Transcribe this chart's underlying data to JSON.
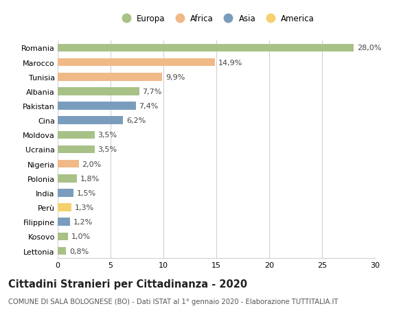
{
  "countries": [
    "Romania",
    "Marocco",
    "Tunisia",
    "Albania",
    "Pakistan",
    "Cina",
    "Moldova",
    "Ucraina",
    "Nigeria",
    "Polonia",
    "India",
    "Perù",
    "Filippine",
    "Kosovo",
    "Lettonia"
  ],
  "values": [
    28.0,
    14.9,
    9.9,
    7.7,
    7.4,
    6.2,
    3.5,
    3.5,
    2.0,
    1.8,
    1.5,
    1.3,
    1.2,
    1.0,
    0.8
  ],
  "labels": [
    "28,0%",
    "14,9%",
    "9,9%",
    "7,7%",
    "7,4%",
    "6,2%",
    "3,5%",
    "3,5%",
    "2,0%",
    "1,8%",
    "1,5%",
    "1,3%",
    "1,2%",
    "1,0%",
    "0,8%"
  ],
  "continents": [
    "Europa",
    "Africa",
    "Africa",
    "Europa",
    "Asia",
    "Asia",
    "Europa",
    "Europa",
    "Africa",
    "Europa",
    "Asia",
    "America",
    "Asia",
    "Europa",
    "Europa"
  ],
  "colors": {
    "Europa": "#a8c187",
    "Africa": "#f0b987",
    "Asia": "#7b9dbd",
    "America": "#f5d06e"
  },
  "legend_order": [
    "Europa",
    "Africa",
    "Asia",
    "America"
  ],
  "title": "Cittadini Stranieri per Cittadinanza - 2020",
  "subtitle": "COMUNE DI SALA BOLOGNESE (BO) - Dati ISTAT al 1° gennaio 2020 - Elaborazione TUTTITALIA.IT",
  "xlim": [
    0,
    30
  ],
  "xticks": [
    0,
    5,
    10,
    15,
    20,
    25,
    30
  ],
  "background_color": "#ffffff",
  "grid_color": "#d0d0d0",
  "bar_height": 0.55,
  "label_fontsize": 8.0,
  "tick_fontsize": 8.0,
  "title_fontsize": 10.5,
  "subtitle_fontsize": 7.2,
  "legend_fontsize": 8.5
}
